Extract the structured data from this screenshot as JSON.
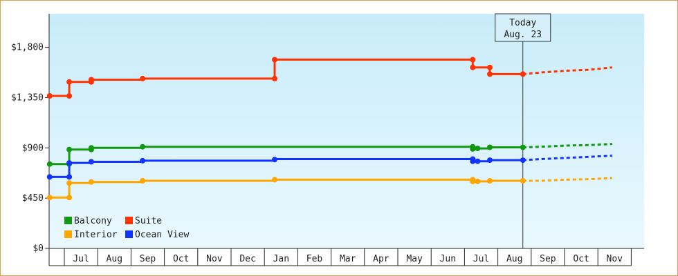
{
  "chart_data": {
    "type": "line",
    "title": "",
    "xlabel": "",
    "ylabel": "",
    "ylim": [
      0,
      2100
    ],
    "y_ticks": [
      {
        "value": 0,
        "label": "$0"
      },
      {
        "value": 450,
        "label": "$450"
      },
      {
        "value": 900,
        "label": "$900"
      },
      {
        "value": 1350,
        "label": "$1,350"
      },
      {
        "value": 1800,
        "label": "$1,800"
      }
    ],
    "x_months": [
      "Jul",
      "Aug",
      "Sep",
      "Oct",
      "Nov",
      "Dec",
      "Jan",
      "Feb",
      "Mar",
      "Apr",
      "May",
      "Jun",
      "Jul",
      "Aug",
      "Sep",
      "Oct",
      "Nov"
    ],
    "today": {
      "line1": "Today",
      "line2": "Aug. 23",
      "month_index": 13.75
    },
    "background": {
      "top": "#c8ecfa",
      "bottom": "#eaf8fe"
    },
    "legend": {
      "placement": "bottom-left",
      "entries": [
        {
          "name": "Balcony",
          "color": "#119911"
        },
        {
          "name": "Suite",
          "color": "#ff3300"
        },
        {
          "name": "Interior",
          "color": "#ffa500"
        },
        {
          "name": "Ocean View",
          "color": "#1133ff"
        }
      ]
    },
    "series": [
      {
        "name": "Suite",
        "color": "#ff3300",
        "points": [
          [
            -0.6,
            1365
          ],
          [
            0.2,
            1365
          ],
          [
            0.2,
            1490
          ],
          [
            1.1,
            1490
          ],
          [
            1.1,
            1510
          ],
          [
            3.2,
            1510
          ],
          [
            3.2,
            1520
          ],
          [
            8.6,
            1520
          ],
          [
            8.6,
            1690
          ],
          [
            16.7,
            1690
          ],
          [
            16.7,
            1620
          ],
          [
            17.4,
            1620
          ],
          [
            17.4,
            1560
          ],
          [
            18.75,
            1560
          ]
        ],
        "markers": [
          [
            -0.6,
            1365
          ],
          [
            0.2,
            1365
          ],
          [
            0.2,
            1490
          ],
          [
            1.1,
            1490
          ],
          [
            1.1,
            1510
          ],
          [
            3.2,
            1520
          ],
          [
            8.6,
            1520
          ],
          [
            8.6,
            1690
          ],
          [
            16.7,
            1690
          ],
          [
            16.7,
            1620
          ],
          [
            17.4,
            1620
          ],
          [
            17.4,
            1560
          ],
          [
            18.75,
            1560
          ]
        ],
        "forecast": [
          [
            18.75,
            1560
          ],
          [
            19.5,
            1575
          ],
          [
            20.5,
            1590
          ],
          [
            21.5,
            1600
          ],
          [
            22.4,
            1620
          ]
        ]
      },
      {
        "name": "Balcony",
        "color": "#119911",
        "points": [
          [
            -0.6,
            755
          ],
          [
            0.2,
            755
          ],
          [
            0.2,
            885
          ],
          [
            1.1,
            885
          ],
          [
            1.1,
            900
          ],
          [
            3.2,
            900
          ],
          [
            3.2,
            910
          ],
          [
            16.7,
            910
          ],
          [
            16.7,
            895
          ],
          [
            17.4,
            895
          ],
          [
            17.4,
            905
          ],
          [
            18.75,
            905
          ]
        ],
        "markers": [
          [
            -0.6,
            755
          ],
          [
            0.2,
            755
          ],
          [
            0.2,
            885
          ],
          [
            1.1,
            885
          ],
          [
            1.1,
            900
          ],
          [
            3.2,
            910
          ],
          [
            16.7,
            910
          ],
          [
            16.7,
            890
          ],
          [
            16.9,
            895
          ],
          [
            17.4,
            905
          ],
          [
            18.75,
            905
          ]
        ],
        "forecast": [
          [
            18.75,
            905
          ],
          [
            19.5,
            910
          ],
          [
            20.5,
            920
          ],
          [
            21.5,
            925
          ],
          [
            22.4,
            935
          ]
        ]
      },
      {
        "name": "Ocean View",
        "color": "#1133ff",
        "points": [
          [
            -0.6,
            640
          ],
          [
            0.2,
            640
          ],
          [
            0.2,
            765
          ],
          [
            1.1,
            765
          ],
          [
            1.1,
            775
          ],
          [
            3.2,
            775
          ],
          [
            3.2,
            785
          ],
          [
            8.6,
            785
          ],
          [
            8.6,
            800
          ],
          [
            16.7,
            800
          ],
          [
            16.7,
            780
          ],
          [
            17.4,
            780
          ],
          [
            17.4,
            790
          ],
          [
            18.75,
            790
          ]
        ],
        "markers": [
          [
            -0.6,
            640
          ],
          [
            0.2,
            640
          ],
          [
            0.2,
            765
          ],
          [
            1.1,
            775
          ],
          [
            3.2,
            785
          ],
          [
            8.6,
            795
          ],
          [
            16.7,
            800
          ],
          [
            16.7,
            780
          ],
          [
            16.9,
            780
          ],
          [
            17.4,
            790
          ],
          [
            18.75,
            790
          ]
        ],
        "forecast": [
          [
            18.75,
            790
          ],
          [
            19.5,
            800
          ],
          [
            20.5,
            810
          ],
          [
            21.5,
            820
          ],
          [
            22.4,
            830
          ]
        ]
      },
      {
        "name": "Interior",
        "color": "#ffa500",
        "points": [
          [
            -0.6,
            455
          ],
          [
            0.2,
            455
          ],
          [
            0.2,
            585
          ],
          [
            1.1,
            585
          ],
          [
            1.1,
            595
          ],
          [
            3.2,
            595
          ],
          [
            3.2,
            605
          ],
          [
            8.6,
            605
          ],
          [
            8.6,
            615
          ],
          [
            16.7,
            615
          ],
          [
            16.7,
            600
          ],
          [
            17.4,
            600
          ],
          [
            17.4,
            605
          ],
          [
            18.75,
            605
          ]
        ],
        "markers": [
          [
            -0.6,
            455
          ],
          [
            0.2,
            455
          ],
          [
            0.2,
            585
          ],
          [
            1.1,
            595
          ],
          [
            3.2,
            605
          ],
          [
            8.6,
            615
          ],
          [
            16.7,
            615
          ],
          [
            16.7,
            600
          ],
          [
            16.9,
            600
          ],
          [
            17.4,
            605
          ],
          [
            18.75,
            605
          ]
        ],
        "forecast": [
          [
            18.75,
            605
          ],
          [
            19.5,
            605
          ],
          [
            20.5,
            615
          ],
          [
            21.5,
            620
          ],
          [
            22.4,
            630
          ]
        ]
      }
    ]
  }
}
